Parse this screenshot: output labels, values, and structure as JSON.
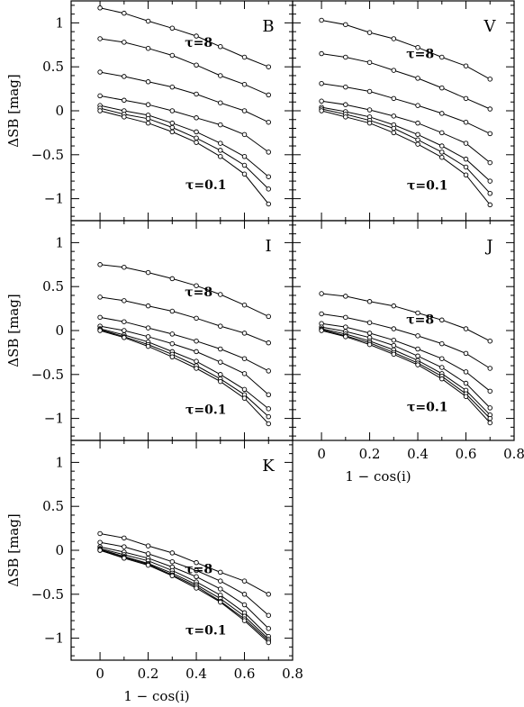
{
  "figure": {
    "ylabel": "ΔSB [mag]",
    "xlabel": "1 − cos(i)"
  },
  "chart_data": [
    {
      "type": "line",
      "band": "B",
      "xlim": [
        -0.12,
        0.8
      ],
      "ylim": [
        -1.25,
        1.25
      ],
      "x": [
        0,
        0.1,
        0.2,
        0.3,
        0.4,
        0.5,
        0.6,
        0.7
      ],
      "annotation_top": "τ=8",
      "annotation_bottom": "τ=0.1",
      "series": [
        {
          "values": [
            1.17,
            1.11,
            1.02,
            0.94,
            0.85,
            0.73,
            0.61,
            0.5
          ]
        },
        {
          "values": [
            0.82,
            0.78,
            0.71,
            0.63,
            0.52,
            0.4,
            0.3,
            0.18
          ]
        },
        {
          "values": [
            0.44,
            0.39,
            0.33,
            0.27,
            0.19,
            0.09,
            0.0,
            -0.13
          ]
        },
        {
          "values": [
            0.17,
            0.12,
            0.07,
            0.0,
            -0.08,
            -0.16,
            -0.27,
            -0.47
          ]
        },
        {
          "values": [
            0.06,
            0.0,
            -0.05,
            -0.14,
            -0.24,
            -0.37,
            -0.52,
            -0.75
          ]
        },
        {
          "values": [
            0.03,
            -0.04,
            -0.09,
            -0.19,
            -0.31,
            -0.45,
            -0.62,
            -0.89
          ]
        },
        {
          "values": [
            0.0,
            -0.07,
            -0.14,
            -0.24,
            -0.36,
            -0.52,
            -0.72,
            -1.06
          ]
        }
      ]
    },
    {
      "type": "line",
      "band": "V",
      "xlim": [
        -0.12,
        0.8
      ],
      "ylim": [
        -1.25,
        1.25
      ],
      "x": [
        0,
        0.1,
        0.2,
        0.3,
        0.4,
        0.5,
        0.6,
        0.7
      ],
      "annotation_top": "τ=8",
      "annotation_bottom": "τ=0.1",
      "series": [
        {
          "values": [
            1.03,
            0.98,
            0.89,
            0.82,
            0.72,
            0.61,
            0.51,
            0.36
          ]
        },
        {
          "values": [
            0.65,
            0.61,
            0.55,
            0.46,
            0.37,
            0.26,
            0.14,
            0.02
          ]
        },
        {
          "values": [
            0.31,
            0.27,
            0.22,
            0.14,
            0.06,
            -0.03,
            -0.13,
            -0.26
          ]
        },
        {
          "values": [
            0.11,
            0.07,
            0.01,
            -0.06,
            -0.14,
            -0.25,
            -0.37,
            -0.59
          ]
        },
        {
          "values": [
            0.04,
            -0.01,
            -0.07,
            -0.16,
            -0.27,
            -0.4,
            -0.55,
            -0.8
          ]
        },
        {
          "values": [
            0.02,
            -0.04,
            -0.11,
            -0.2,
            -0.33,
            -0.47,
            -0.64,
            -0.94
          ]
        },
        {
          "values": [
            0.0,
            -0.07,
            -0.14,
            -0.25,
            -0.38,
            -0.53,
            -0.73,
            -1.07
          ]
        }
      ]
    },
    {
      "type": "line",
      "band": "I",
      "xlim": [
        -0.12,
        0.8
      ],
      "ylim": [
        -1.25,
        1.25
      ],
      "x": [
        0,
        0.1,
        0.2,
        0.3,
        0.4,
        0.5,
        0.6,
        0.7
      ],
      "annotation_top": "τ=8",
      "annotation_bottom": "τ=0.1",
      "series": [
        {
          "values": [
            0.75,
            0.72,
            0.66,
            0.59,
            0.51,
            0.41,
            0.29,
            0.16
          ]
        },
        {
          "values": [
            0.38,
            0.34,
            0.28,
            0.22,
            0.14,
            0.05,
            -0.03,
            -0.14
          ]
        },
        {
          "values": [
            0.15,
            0.1,
            0.03,
            -0.04,
            -0.12,
            -0.21,
            -0.32,
            -0.46
          ]
        },
        {
          "values": [
            0.05,
            0.0,
            -0.07,
            -0.15,
            -0.24,
            -0.36,
            -0.49,
            -0.73
          ]
        },
        {
          "values": [
            0.02,
            -0.05,
            -0.13,
            -0.24,
            -0.35,
            -0.5,
            -0.67,
            -0.89
          ]
        },
        {
          "values": [
            0.01,
            -0.07,
            -0.16,
            -0.27,
            -0.4,
            -0.55,
            -0.73,
            -0.98
          ]
        },
        {
          "values": [
            0.0,
            -0.08,
            -0.18,
            -0.3,
            -0.43,
            -0.58,
            -0.77,
            -1.06
          ]
        }
      ]
    },
    {
      "type": "line",
      "band": "J",
      "xlim": [
        -0.12,
        0.8
      ],
      "ylim": [
        -1.25,
        1.25
      ],
      "x": [
        0,
        0.1,
        0.2,
        0.3,
        0.4,
        0.5,
        0.6,
        0.7
      ],
      "annotation_top": "τ=8",
      "annotation_bottom": "τ=0.1",
      "series": [
        {
          "values": [
            0.42,
            0.39,
            0.33,
            0.28,
            0.2,
            0.12,
            0.02,
            -0.12
          ]
        },
        {
          "values": [
            0.19,
            0.15,
            0.09,
            0.02,
            -0.06,
            -0.15,
            -0.26,
            -0.43
          ]
        },
        {
          "values": [
            0.08,
            0.04,
            -0.03,
            -0.11,
            -0.21,
            -0.32,
            -0.47,
            -0.69
          ]
        },
        {
          "values": [
            0.04,
            -0.01,
            -0.08,
            -0.17,
            -0.29,
            -0.42,
            -0.6,
            -0.88
          ]
        },
        {
          "values": [
            0.02,
            -0.04,
            -0.12,
            -0.22,
            -0.34,
            -0.49,
            -0.68,
            -0.96
          ]
        },
        {
          "values": [
            0.01,
            -0.06,
            -0.14,
            -0.25,
            -0.37,
            -0.52,
            -0.72,
            -1.0
          ]
        },
        {
          "values": [
            0.0,
            -0.07,
            -0.16,
            -0.27,
            -0.39,
            -0.55,
            -0.75,
            -1.05
          ]
        }
      ]
    },
    {
      "type": "line",
      "band": "K",
      "xlim": [
        -0.12,
        0.8
      ],
      "ylim": [
        -1.25,
        1.25
      ],
      "x": [
        0,
        0.1,
        0.2,
        0.3,
        0.4,
        0.5,
        0.6,
        0.7
      ],
      "annotation_top": "τ=8",
      "annotation_bottom": "τ=0.1",
      "series": [
        {
          "values": [
            0.19,
            0.14,
            0.05,
            -0.03,
            -0.14,
            -0.25,
            -0.35,
            -0.5
          ]
        },
        {
          "values": [
            0.09,
            0.04,
            -0.04,
            -0.13,
            -0.23,
            -0.35,
            -0.5,
            -0.74
          ]
        },
        {
          "values": [
            0.04,
            -0.02,
            -0.09,
            -0.19,
            -0.3,
            -0.44,
            -0.62,
            -0.89
          ]
        },
        {
          "values": [
            0.02,
            -0.05,
            -0.12,
            -0.23,
            -0.36,
            -0.51,
            -0.71,
            -0.98
          ]
        },
        {
          "values": [
            0.01,
            -0.07,
            -0.15,
            -0.26,
            -0.39,
            -0.55,
            -0.75,
            -1.01
          ]
        },
        {
          "values": [
            0.0,
            -0.08,
            -0.16,
            -0.28,
            -0.41,
            -0.58,
            -0.78,
            -1.03
          ]
        },
        {
          "values": [
            0.0,
            -0.09,
            -0.17,
            -0.29,
            -0.43,
            -0.59,
            -0.8,
            -1.05
          ]
        }
      ]
    }
  ]
}
